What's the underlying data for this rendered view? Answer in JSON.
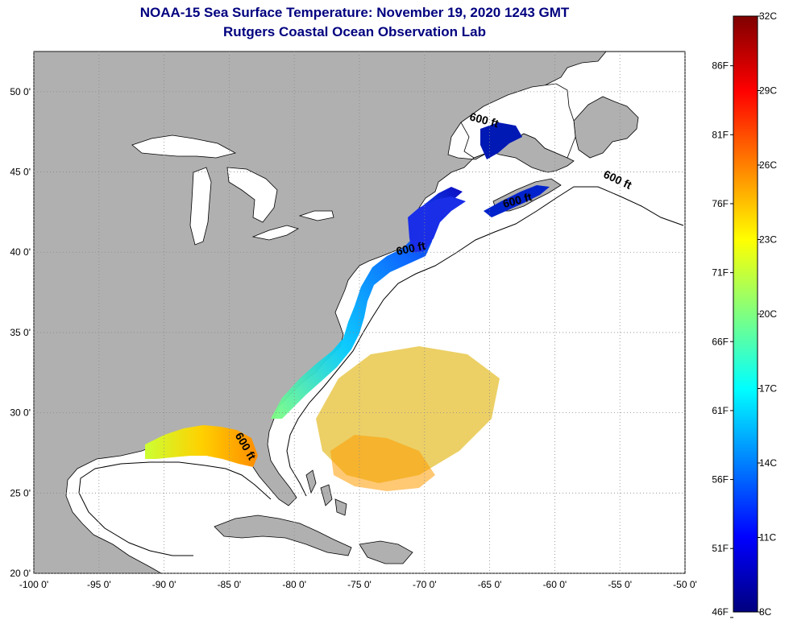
{
  "header": {
    "title": "NOAA-15 Sea Surface Temperature:  November 19, 2020 1243 GMT",
    "subtitle": "Rutgers Coastal Ocean Observation Lab"
  },
  "map": {
    "lon_range": [
      -100,
      -50
    ],
    "lat_range": [
      20,
      52.5
    ],
    "lon_ticks": [
      {
        "value": -100,
        "label": "-100 0'"
      },
      {
        "value": -95,
        "label": "-95 0'"
      },
      {
        "value": -90,
        "label": "-90 0'"
      },
      {
        "value": -85,
        "label": "-85 0'"
      },
      {
        "value": -80,
        "label": "-80 0'"
      },
      {
        "value": -75,
        "label": "-75 0'"
      },
      {
        "value": -70,
        "label": "-70 0'"
      },
      {
        "value": -65,
        "label": "-65 0'"
      },
      {
        "value": -60,
        "label": "-60 0'"
      },
      {
        "value": -55,
        "label": "-55 0'"
      },
      {
        "value": -50,
        "label": "-50 0'"
      }
    ],
    "lat_ticks": [
      {
        "value": 50,
        "label": "50 0'"
      },
      {
        "value": 45,
        "label": "45 0'"
      },
      {
        "value": 40,
        "label": "40 0'"
      },
      {
        "value": 35,
        "label": "35 0'"
      },
      {
        "value": 30,
        "label": "30 0'"
      },
      {
        "value": 25,
        "label": "25 0'"
      },
      {
        "value": 20,
        "label": "20 0'"
      }
    ],
    "contour_label": "600 ft",
    "contour_labels": [
      {
        "lon": -65.5,
        "lat": 48.0,
        "angle": 15
      },
      {
        "lon": -55.3,
        "lat": 44.3,
        "angle": 25
      },
      {
        "lon": -62.8,
        "lat": 43.0,
        "angle": -15
      },
      {
        "lon": -71.0,
        "lat": 40.0,
        "angle": -12
      },
      {
        "lon": -84.0,
        "lat": 27.8,
        "angle": 60
      }
    ],
    "colors": {
      "land": "#b0b0b0",
      "ocean": "#ffffff",
      "coast": "#000000",
      "grid": "#888888"
    }
  },
  "colorbar": {
    "c_range": [
      8,
      32
    ],
    "celsius_labels": [
      {
        "value": 32,
        "label": "32C"
      },
      {
        "value": 29,
        "label": "29C"
      },
      {
        "value": 26,
        "label": "26C"
      },
      {
        "value": 23,
        "label": "23C"
      },
      {
        "value": 20,
        "label": "20C"
      },
      {
        "value": 17,
        "label": "17C"
      },
      {
        "value": 14,
        "label": "14C"
      },
      {
        "value": 11,
        "label": "11C"
      },
      {
        "value": 8,
        "label": "8C"
      }
    ],
    "fahrenheit_labels": [
      {
        "value": 86,
        "label": "86F"
      },
      {
        "value": 81,
        "label": "81F"
      },
      {
        "value": 76,
        "label": "76F"
      },
      {
        "value": 71,
        "label": "71F"
      },
      {
        "value": 66,
        "label": "66F"
      },
      {
        "value": 61,
        "label": "61F"
      },
      {
        "value": 56,
        "label": "56F"
      },
      {
        "value": 51,
        "label": "51F"
      },
      {
        "value": 46,
        "label": "46F"
      }
    ],
    "stops": [
      "#00007f",
      "#0000ff",
      "#0080ff",
      "#00ffff",
      "#80ff80",
      "#ffff00",
      "#ff8000",
      "#ff0000",
      "#7f0000"
    ]
  }
}
